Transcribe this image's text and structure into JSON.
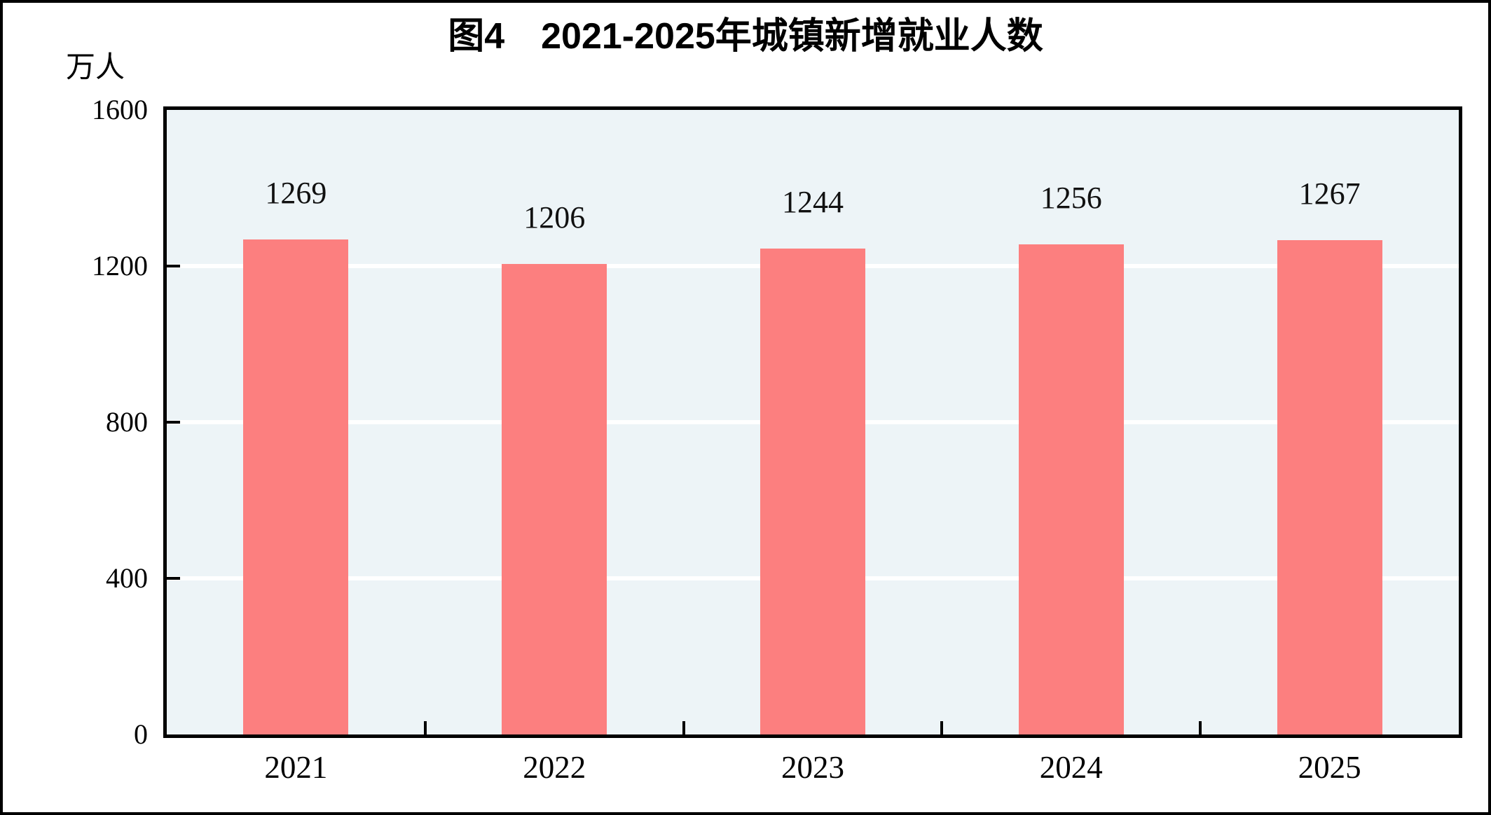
{
  "chart_data": {
    "type": "bar",
    "title": "图4　2021-2025年城镇新增就业人数",
    "ylabel": "万人",
    "xlabel": "",
    "categories": [
      "2021",
      "2022",
      "2023",
      "2024",
      "2025"
    ],
    "values": [
      1269,
      1206,
      1244,
      1256,
      1267
    ],
    "data_labels": [
      "1269",
      "1206",
      "1244",
      "1256",
      "1267"
    ],
    "ylim": [
      0,
      1600
    ],
    "yticks": [
      "0",
      "400",
      "800",
      "1200",
      "1600"
    ],
    "grid": true,
    "legend_position": "none",
    "bar_color": "#fc7f7f",
    "plot_background": "#edf4f7",
    "axis_color": "#000000",
    "gridline_color": "#ffffff"
  }
}
